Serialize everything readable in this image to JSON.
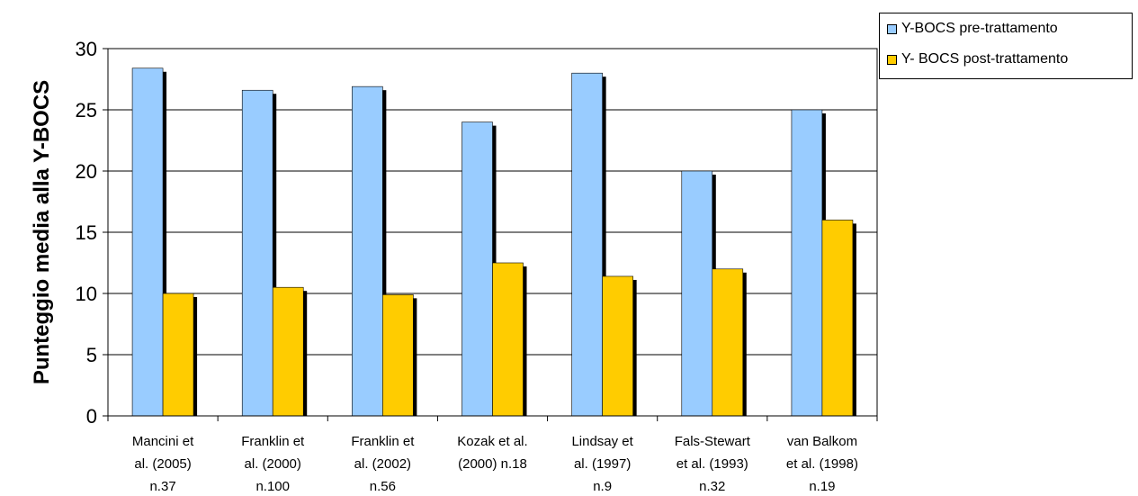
{
  "chart_data": {
    "type": "bar",
    "categories": [
      [
        "Mancini et",
        "al. (2005)",
        "n.37"
      ],
      [
        "Franklin et",
        "al. (2000)",
        "n.100"
      ],
      [
        "Franklin et",
        "al. (2002)",
        "n.56"
      ],
      [
        "Kozak et al.",
        "(2000) n.18"
      ],
      [
        "Lindsay et",
        "al. (1997)",
        "n.9"
      ],
      [
        "Fals-Stewart",
        "et al. (1993)",
        "n.32"
      ],
      [
        "van Balkom",
        "et al. (1998)",
        "n.19"
      ]
    ],
    "series": [
      {
        "name": "Y-BOCS pre-trattamento",
        "color": "#99ccff",
        "values": [
          28.4,
          26.6,
          26.9,
          24.0,
          28.0,
          20.0,
          25.0
        ]
      },
      {
        "name": "Y- BOCS post-trattamento",
        "color": "#ffcc00",
        "values": [
          10.0,
          10.5,
          9.9,
          12.5,
          11.4,
          12.0,
          16.0
        ]
      }
    ],
    "title": "",
    "xlabel": "",
    "ylabel": "Punteggio media alla Y-BOCS",
    "ylim": [
      0,
      30
    ],
    "yticks": [
      "0",
      "5",
      "10",
      "15",
      "20",
      "25",
      "30"
    ],
    "grid": true,
    "legend": "top-right"
  }
}
